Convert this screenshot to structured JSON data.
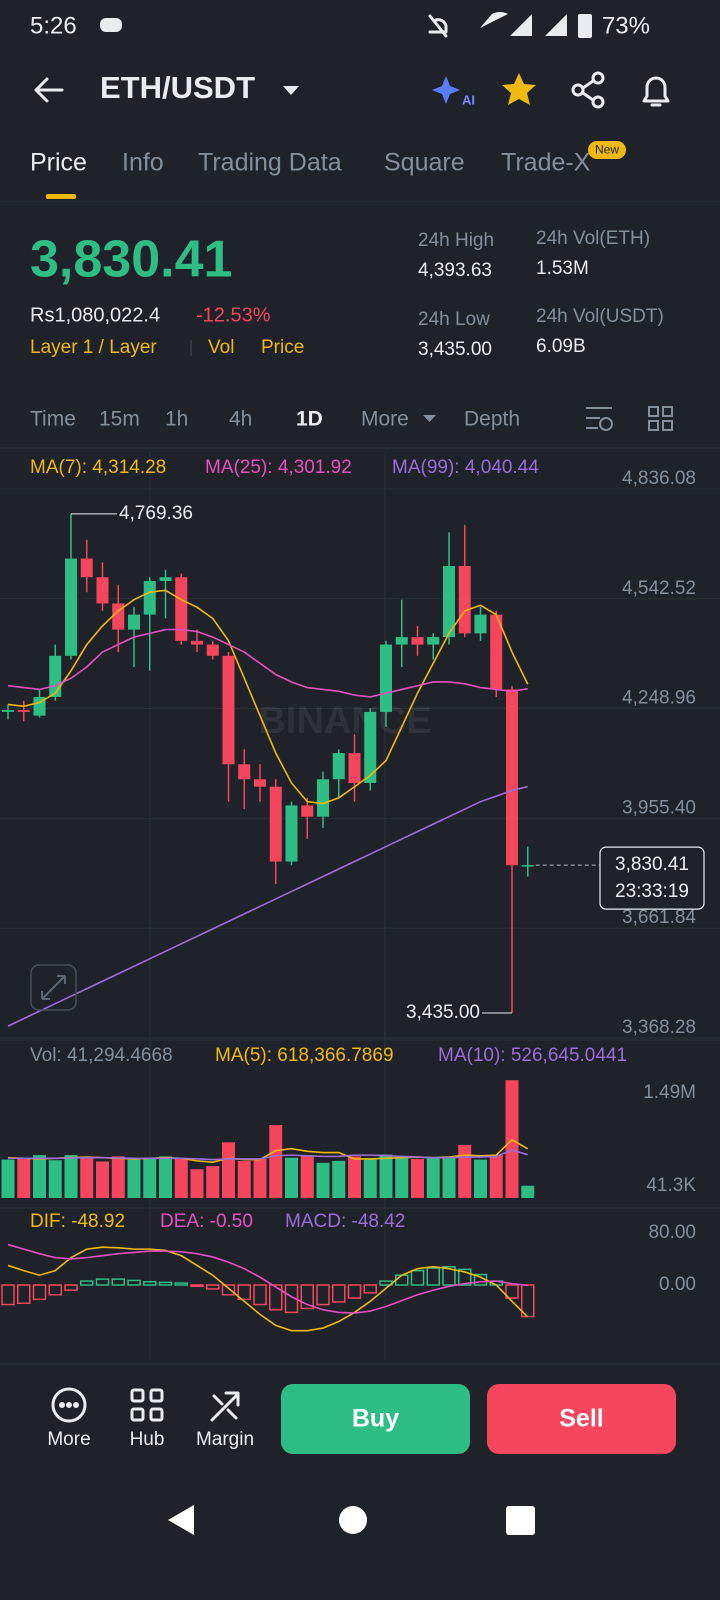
{
  "status_bar": {
    "time": "5:26",
    "battery": "73%"
  },
  "header": {
    "pair": "ETH/USDT",
    "ai_badge": "AI"
  },
  "tabs": [
    "Price",
    "Info",
    "Trading Data",
    "Square",
    "Trade-X"
  ],
  "tab_badge": "New",
  "ticker": {
    "price": "3,830.41",
    "fiat": "Rs1,080,022.4",
    "change": "-12.53%",
    "tags": [
      "Layer 1 / Layer",
      "Vol",
      "Price"
    ],
    "stats": [
      {
        "label": "24h High",
        "value": "4,393.63"
      },
      {
        "label": "24h Vol(ETH)",
        "value": "1.53M"
      },
      {
        "label": "24h Low",
        "value": "3,435.00"
      },
      {
        "label": "24h Vol(USDT)",
        "value": "6.09B"
      }
    ]
  },
  "intervals": [
    "Time",
    "15m",
    "1h",
    "4h",
    "1D",
    "More",
    "Depth"
  ],
  "chart_data": [
    {
      "type": "candlestick",
      "up_color": "#2ebd85",
      "down_color": "#f6465d",
      "legend": [
        {
          "label": "MA(7): 4,314.28",
          "color": "#f0b90b"
        },
        {
          "label": "MA(25): 4,301.92",
          "color": "#e84fc0"
        },
        {
          "label": "MA(99): 4,040.44",
          "color": "#9b6ddc"
        }
      ],
      "watermark": "BINANCE",
      "ylim": [
        3362.9,
        4934.8
      ],
      "yticks": [
        {
          "value": 4836.08,
          "label": "4,836.08"
        },
        {
          "value": 4542.52,
          "label": "4,542.52"
        },
        {
          "value": 4248.96,
          "label": "4,248.96"
        },
        {
          "value": 3955.4,
          "label": "3,955.40"
        },
        {
          "value": 3661.84,
          "label": "3,661.84"
        },
        {
          "value": 3368.28,
          "label": "3,368.28"
        }
      ],
      "grid": true,
      "open": [
        4240,
        4245,
        4230,
        4280,
        4390,
        4650,
        4600,
        4530,
        4460,
        4500,
        4590,
        4600,
        4430,
        4420,
        4390,
        4100,
        4060,
        4040,
        3840,
        3990,
        3960,
        4060,
        4130,
        4050,
        4240,
        4420,
        4440,
        4420,
        4440,
        4630,
        4450,
        4500,
        4300,
        3830
      ],
      "high": [
        4260,
        4270,
        4300,
        4420,
        4769.36,
        4700,
        4640,
        4580,
        4520,
        4600,
        4620,
        4610,
        4460,
        4430,
        4400,
        4140,
        4100,
        4060,
        4000,
        4010,
        4080,
        4140,
        4180,
        4250,
        4430,
        4540,
        4470,
        4450,
        4720,
        4740,
        4520,
        4510,
        4310,
        3880
      ],
      "low": [
        4220,
        4215,
        4225,
        4270,
        4380,
        4560,
        4510,
        4400,
        4360,
        4350,
        4490,
        4420,
        4400,
        4380,
        4000,
        3980,
        4000,
        3780,
        3830,
        3900,
        3930,
        4010,
        4000,
        4030,
        4200,
        4360,
        4390,
        4380,
        4420,
        4440,
        4430,
        4280,
        3435,
        3800
      ],
      "close": [
        4245,
        4240,
        4280,
        4390,
        4650,
        4600,
        4530,
        4460,
        4500,
        4590,
        4600,
        4430,
        4420,
        4390,
        4100,
        4060,
        4040,
        3840,
        3990,
        3960,
        4060,
        4130,
        4050,
        4240,
        4420,
        4440,
        4420,
        4440,
        4630,
        4450,
        4500,
        4300,
        3830,
        3830.41
      ],
      "series": [
        {
          "name": "MA(7)",
          "color": "#f0b90b",
          "values": [
            4260,
            4255,
            4265,
            4290,
            4350,
            4420,
            4470,
            4510,
            4540,
            4560,
            4565,
            4540,
            4520,
            4490,
            4430,
            4330,
            4230,
            4130,
            4050,
            4000,
            3995,
            4010,
            4040,
            4070,
            4110,
            4200,
            4290,
            4370,
            4450,
            4510,
            4525,
            4500,
            4400,
            4314.28
          ]
        },
        {
          "name": "MA(25)",
          "color": "#e84fc0",
          "values": [
            4310,
            4305,
            4300,
            4310,
            4330,
            4360,
            4400,
            4420,
            4440,
            4450,
            4460,
            4460,
            4455,
            4440,
            4420,
            4400,
            4370,
            4340,
            4320,
            4305,
            4300,
            4295,
            4285,
            4280,
            4290,
            4300,
            4310,
            4320,
            4320,
            4315,
            4305,
            4300,
            4295,
            4301.92
          ]
        },
        {
          "name": "MA(99)",
          "color": "#9b6ddc",
          "values": [
            3400,
            3420,
            3440,
            3460,
            3480,
            3500,
            3520,
            3540,
            3560,
            3580,
            3600,
            3620,
            3640,
            3660,
            3680,
            3700,
            3720,
            3740,
            3760,
            3780,
            3800,
            3820,
            3840,
            3860,
            3880,
            3900,
            3920,
            3940,
            3960,
            3980,
            4000,
            4015,
            4030,
            4040.44
          ]
        }
      ],
      "annotations": [
        {
          "index": 4,
          "value": 4769.36,
          "label": "4,769.36"
        },
        {
          "index": 32,
          "value": 3435.0,
          "label": "3,435.00"
        }
      ],
      "last_price": {
        "value": 3830.41,
        "label": "3,830.41"
      },
      "countdown": "23:33:19"
    },
    {
      "type": "volume",
      "legend": [
        {
          "label": "Vol: 41,294.4668",
          "color": "#848e9c"
        },
        {
          "label": "MA(5): 618,366.7869",
          "color": "#f0b90b"
        },
        {
          "label": "MA(10): 526,645.0441",
          "color": "#9b6ddc"
        }
      ],
      "ylim": [
        -150000,
        1850000
      ],
      "yticks": [
        {
          "value": 1490000,
          "label": "1.49M"
        },
        {
          "value": 41300,
          "label": "41.3K"
        }
      ],
      "values": [
        450000,
        470000,
        520000,
        440000,
        520000,
        480000,
        420000,
        500000,
        450000,
        480000,
        500000,
        460000,
        300000,
        350000,
        720000,
        430000,
        460000,
        990000,
        480000,
        520000,
        400000,
        430000,
        500000,
        470000,
        530000,
        480000,
        460000,
        470000,
        500000,
        680000,
        450000,
        520000,
        1690000,
        41294.4668
      ],
      "series": [
        {
          "name": "MA(5)",
          "color": "#f0b90b",
          "values": [
            480000,
            470000,
            460000,
            470000,
            480000,
            490000,
            480000,
            470000,
            460000,
            470000,
            480000,
            470000,
            430000,
            410000,
            470000,
            450000,
            450000,
            590000,
            620000,
            580000,
            560000,
            560000,
            460000,
            460000,
            470000,
            480000,
            490000,
            480000,
            490000,
            520000,
            510000,
            520000,
            760000,
            618366.7869
          ]
        },
        {
          "name": "MA(10)",
          "color": "#9b6ddc",
          "values": [
            470000,
            470000,
            470000,
            470000,
            475000,
            480000,
            480000,
            475000,
            470000,
            470000,
            470000,
            470000,
            460000,
            450000,
            460000,
            460000,
            460000,
            510000,
            520000,
            510000,
            500000,
            500000,
            520000,
            520000,
            510000,
            500000,
            490000,
            480000,
            480000,
            490000,
            490000,
            500000,
            600000,
            526645.0441
          ]
        }
      ]
    },
    {
      "type": "macd",
      "legend": [
        {
          "label": "DIF: -48.92",
          "color": "#f0b90b"
        },
        {
          "label": "DEA: -0.50",
          "color": "#e84fc0"
        },
        {
          "label": "MACD: -48.42",
          "color": "#9b6ddc"
        }
      ],
      "ylim": [
        -115,
        115
      ],
      "yticks": [
        {
          "value": 80,
          "label": "80.00"
        },
        {
          "value": 0,
          "label": "0.00"
        }
      ],
      "values": [
        -30,
        -28,
        -22,
        -15,
        -8,
        6,
        9,
        9,
        7,
        5,
        4,
        3,
        -2,
        -6,
        -15,
        -22,
        -30,
        -38,
        -42,
        -36,
        -30,
        -26,
        -20,
        -12,
        6,
        15,
        22,
        26,
        28,
        24,
        16,
        6,
        -20,
        -48.42
      ],
      "series": [
        {
          "name": "DIF",
          "color": "#f0b90b",
          "values": [
            30,
            22,
            15,
            22,
            42,
            55,
            58,
            57,
            55,
            55,
            53,
            45,
            30,
            15,
            -5,
            -25,
            -45,
            -62,
            -70,
            -70,
            -66,
            -56,
            -42,
            -25,
            -5,
            15,
            25,
            28,
            25,
            20,
            12,
            0,
            -25,
            -48.92
          ]
        },
        {
          "name": "DEA",
          "color": "#e84fc0",
          "values": [
            62,
            55,
            48,
            42,
            40,
            42,
            45,
            48,
            50,
            52,
            52,
            51,
            48,
            43,
            35,
            25,
            12,
            -3,
            -18,
            -30,
            -38,
            -42,
            -43,
            -40,
            -33,
            -24,
            -15,
            -8,
            -2,
            2,
            5,
            6,
            2,
            -0.5
          ]
        }
      ]
    }
  ],
  "bottom_bar": {
    "actions": [
      "More",
      "Hub",
      "Margin"
    ],
    "buy": "Buy",
    "sell": "Sell"
  }
}
